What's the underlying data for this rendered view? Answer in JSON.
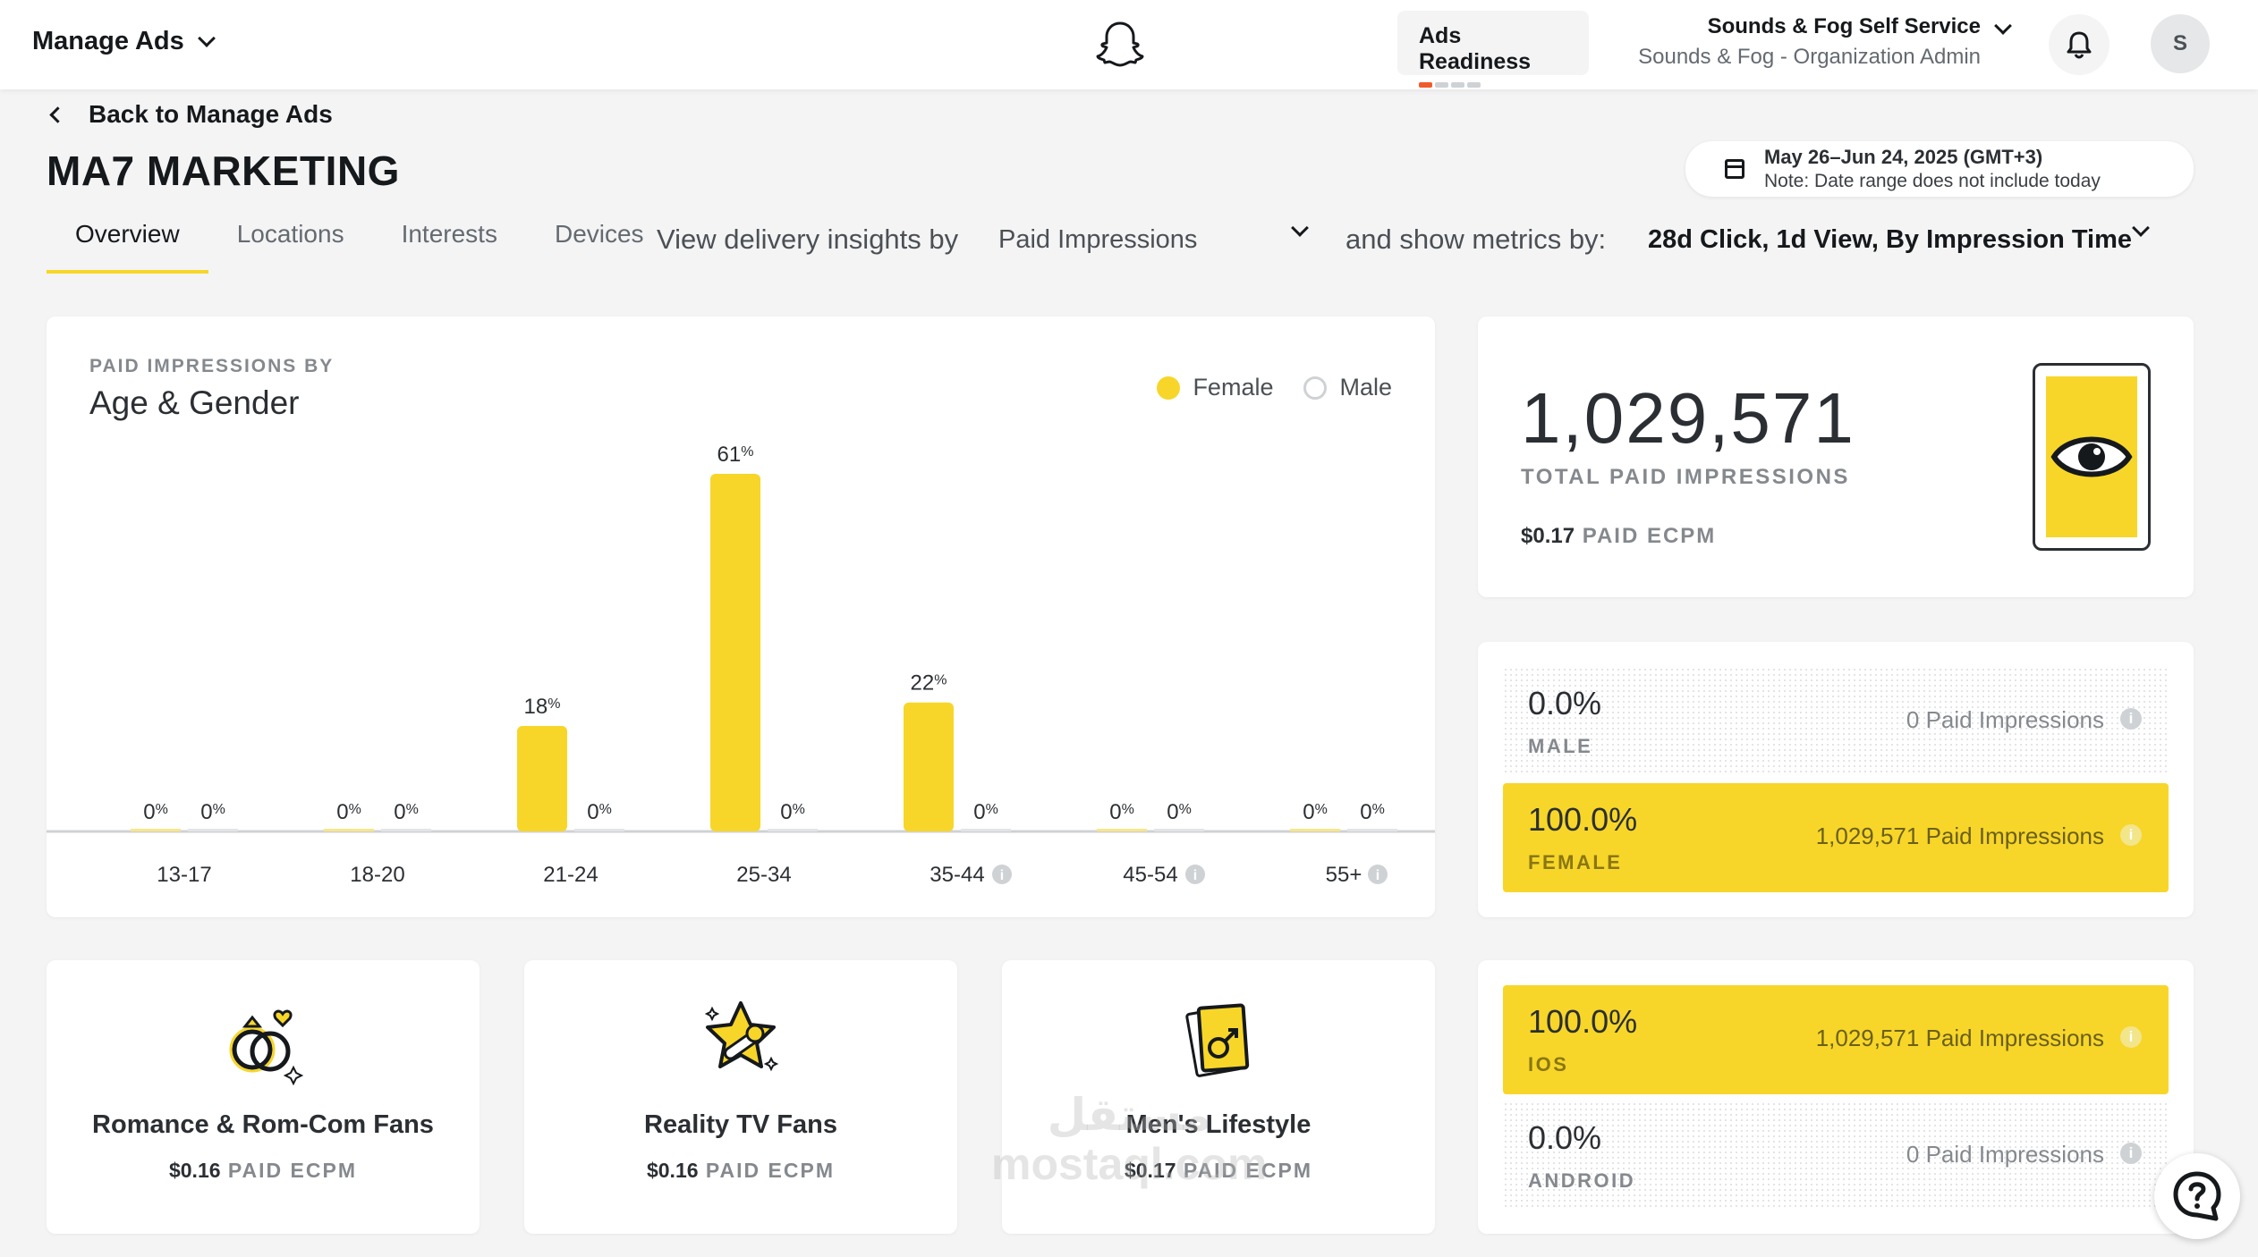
{
  "topbar": {
    "manage_ads": "Manage Ads",
    "ads_readiness": "Ads Readiness",
    "account_name": "Sounds & Fog Self Service",
    "account_role": "Sounds & Fog - Organization Admin",
    "avatar_initial": "S"
  },
  "header": {
    "back_link": "Back to Manage Ads",
    "title": "MA7 MARKETING",
    "date_range": "May 26–Jun 24, 2025 (GMT+3)",
    "date_note": "Note: Date range does not include today"
  },
  "tabs": [
    {
      "label": "Overview",
      "active": true
    },
    {
      "label": "Locations",
      "active": false
    },
    {
      "label": "Interests",
      "active": false
    },
    {
      "label": "Devices",
      "active": false
    }
  ],
  "controls": {
    "insights_label": "View delivery insights by",
    "insights_value": "Paid Impressions",
    "metrics_label": "and show metrics by:",
    "metrics_value": "28d Click, 1d View, By Impression Time"
  },
  "chart_card": {
    "eyebrow": "PAID IMPRESSIONS BY",
    "title": "Age & Gender",
    "legend": [
      "Female",
      "Male"
    ]
  },
  "chart_data": {
    "type": "bar",
    "title": "Age & Gender",
    "categories": [
      "13-17",
      "18-20",
      "21-24",
      "25-34",
      "35-44",
      "45-54",
      "55+"
    ],
    "info_icons": [
      false,
      false,
      false,
      false,
      true,
      true,
      true
    ],
    "series": [
      {
        "name": "Female",
        "values": [
          0,
          0,
          18,
          61,
          22,
          0,
          0
        ],
        "color": "#f7d629"
      },
      {
        "name": "Male",
        "values": [
          0,
          0,
          0,
          0,
          0,
          0,
          0
        ],
        "color": "#e2e4e7"
      }
    ],
    "value_suffix": "%",
    "ylim": [
      0,
      61
    ],
    "grid": false,
    "legend_position": "top-right"
  },
  "total_card": {
    "number": "1,029,571",
    "label": "TOTAL PAID IMPRESSIONS",
    "ecpm_value": "$0.17",
    "ecpm_label": "PAID ECPM"
  },
  "gender_rows": [
    {
      "pct": "0.0%",
      "label": "MALE",
      "impressions": "0 Paid Impressions",
      "filled": false
    },
    {
      "pct": "100.0%",
      "label": "FEMALE",
      "impressions": "1,029,571 Paid Impressions",
      "filled": true
    }
  ],
  "os_rows": [
    {
      "pct": "100.0%",
      "label": "IOS",
      "impressions": "1,029,571 Paid Impressions",
      "filled": true
    },
    {
      "pct": "0.0%",
      "label": "ANDROID",
      "impressions": "0 Paid Impressions",
      "filled": false
    }
  ],
  "interests": [
    {
      "name": "Romance & Rom-Com Fans",
      "ecpm_value": "$0.16",
      "ecpm_label": "PAID ECPM",
      "icon": "rings-icon"
    },
    {
      "name": "Reality TV Fans",
      "ecpm_value": "$0.16",
      "ecpm_label": "PAID ECPM",
      "icon": "star-microphone-icon"
    },
    {
      "name": "Men's Lifestyle",
      "ecpm_value": "$0.17",
      "ecpm_label": "PAID ECPM",
      "icon": "male-magazine-icon"
    }
  ],
  "watermark": {
    "line1": "مستقل",
    "line2": "mostaql.com"
  },
  "colors": {
    "accent": "#f7d629",
    "readiness": "#f15a2b"
  }
}
